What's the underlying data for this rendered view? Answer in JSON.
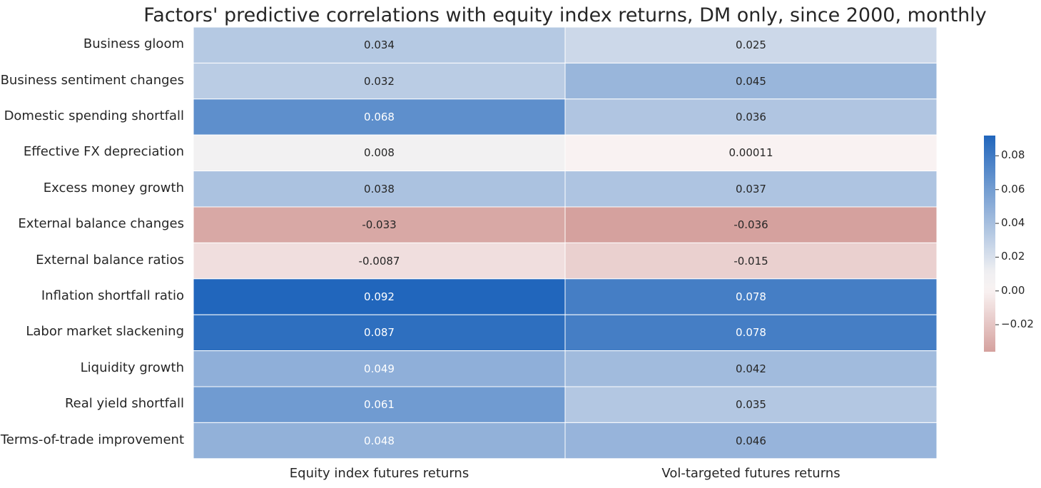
{
  "chart_data": {
    "type": "heatmap",
    "title": "Factors' predictive correlations with equity index returns, DM only, since 2000, monthly",
    "rows": [
      "Business gloom",
      "Business sentiment changes",
      "Domestic spending shortfall",
      "Effective FX depreciation",
      "Excess money growth",
      "External balance changes",
      "External balance ratios",
      "Inflation shortfall ratio",
      "Labor market slackening",
      "Liquidity growth",
      "Real yield shortfall",
      "Terms-of-trade improvement"
    ],
    "columns": [
      "Equity index futures returns",
      "Vol-targeted futures returns"
    ],
    "values": [
      [
        0.034,
        0.025
      ],
      [
        0.032,
        0.045
      ],
      [
        0.068,
        0.036
      ],
      [
        0.008,
        0.00011
      ],
      [
        0.038,
        0.037
      ],
      [
        -0.033,
        -0.036
      ],
      [
        -0.0087,
        -0.015
      ],
      [
        0.092,
        0.078
      ],
      [
        0.087,
        0.078
      ],
      [
        0.049,
        0.042
      ],
      [
        0.061,
        0.035
      ],
      [
        0.048,
        0.046
      ]
    ],
    "value_labels": [
      [
        "0.034",
        "0.025"
      ],
      [
        "0.032",
        "0.045"
      ],
      [
        "0.068",
        "0.036"
      ],
      [
        "0.008",
        "0.00011"
      ],
      [
        "0.038",
        "0.037"
      ],
      [
        "-0.033",
        "-0.036"
      ],
      [
        "-0.0087",
        "-0.015"
      ],
      [
        "0.092",
        "0.078"
      ],
      [
        "0.087",
        "0.078"
      ],
      [
        "0.049",
        "0.042"
      ],
      [
        "0.061",
        "0.035"
      ],
      [
        "0.048",
        "0.046"
      ]
    ],
    "colorbar": {
      "ticks": [
        "0.08",
        "0.06",
        "0.04",
        "0.02",
        "0.00",
        "−0.02"
      ],
      "tick_values": [
        0.08,
        0.06,
        0.04,
        0.02,
        0.0,
        -0.02
      ],
      "vmin": -0.036,
      "vmax": 0.092,
      "colors": {
        "negative": "#d5a19e",
        "zero": "#f9f2f2",
        "mid": "#f0f0f2",
        "positive": "#2166bc"
      }
    }
  }
}
